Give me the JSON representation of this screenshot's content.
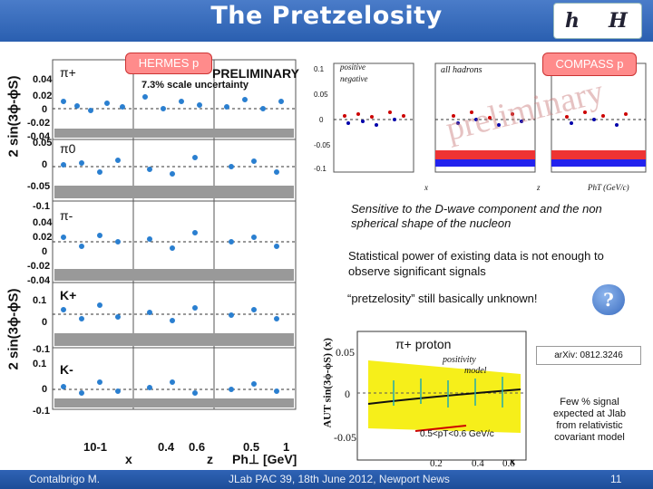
{
  "slide": {
    "title": "The Pretzelosity",
    "logo_text": [
      "h",
      "H"
    ]
  },
  "hermes": {
    "tag": "HERMES p",
    "preliminary": "PRELIMINARY",
    "scale_uncertainty": "7.3% scale uncertainty",
    "y_axis_label_top": "2 sin(3ϕ-ϕS)",
    "y_axis_label_bottom": "2 sin(3ϕ-ϕS)",
    "panels": [
      {
        "label": "π+",
        "ticks": [
          "0.04",
          "0.02",
          "0",
          "-0.02",
          "-0.04"
        ]
      },
      {
        "label": "π0",
        "ticks": [
          "0.05",
          "0",
          "-0.05"
        ]
      },
      {
        "label": "π-",
        "ticks": [
          "-0.1",
          "0.04",
          "0.02",
          "0",
          "-0.02",
          "-0.04"
        ]
      },
      {
        "label": "K+",
        "ticks": [
          "0.1",
          "0",
          "-0.1"
        ]
      },
      {
        "label": "K-",
        "ticks": [
          "0.1",
          "0",
          "-0.1"
        ]
      }
    ],
    "x_tick_labels": [
      "10-1",
      "0.4",
      "0.6",
      "0.5",
      "1"
    ],
    "x_axis_labels": [
      "x",
      "z",
      "Ph⊥ [GeV]"
    ]
  },
  "compass": {
    "tag": "COMPASS p",
    "legend": [
      "positive",
      "negative"
    ],
    "all_hadrons": "all hadrons",
    "watermark": "preliminary",
    "x_labels": [
      "x",
      "z",
      "PhT (GeV/c)"
    ],
    "y_ticks": [
      "0.1",
      "0.05",
      "0",
      "-0.05",
      "-0.1"
    ]
  },
  "notes": {
    "sensitive": "Sensitive to the D-wave component and the non spherical shape of the nucleon",
    "statistical": "Statistical power of existing data is not enough to observe significant signals",
    "unknown": "“pretzelosity” still basically unknown!",
    "question": "?",
    "arxiv": "arXiv: 0812.3246",
    "jlab": "Few % signal expected at Jlab from relativistic covariant model"
  },
  "projection": {
    "y_label": "AUT sin(3ϕ-ϕS) (x)",
    "channel": "π+ proton",
    "legend": [
      "positivity",
      "model"
    ],
    "pt_cut": "0.5<pT<0.6 GeV/c",
    "y_ticks": [
      "0.05",
      "0",
      "-0.05"
    ],
    "x_ticks": [
      "0.2",
      "0.4",
      "0.6"
    ],
    "x_label": "x"
  },
  "footer": {
    "author": "Contalbrigo M.",
    "event": "JLab PAC 39, 18th June 2012, Newport News",
    "page": "11"
  }
}
